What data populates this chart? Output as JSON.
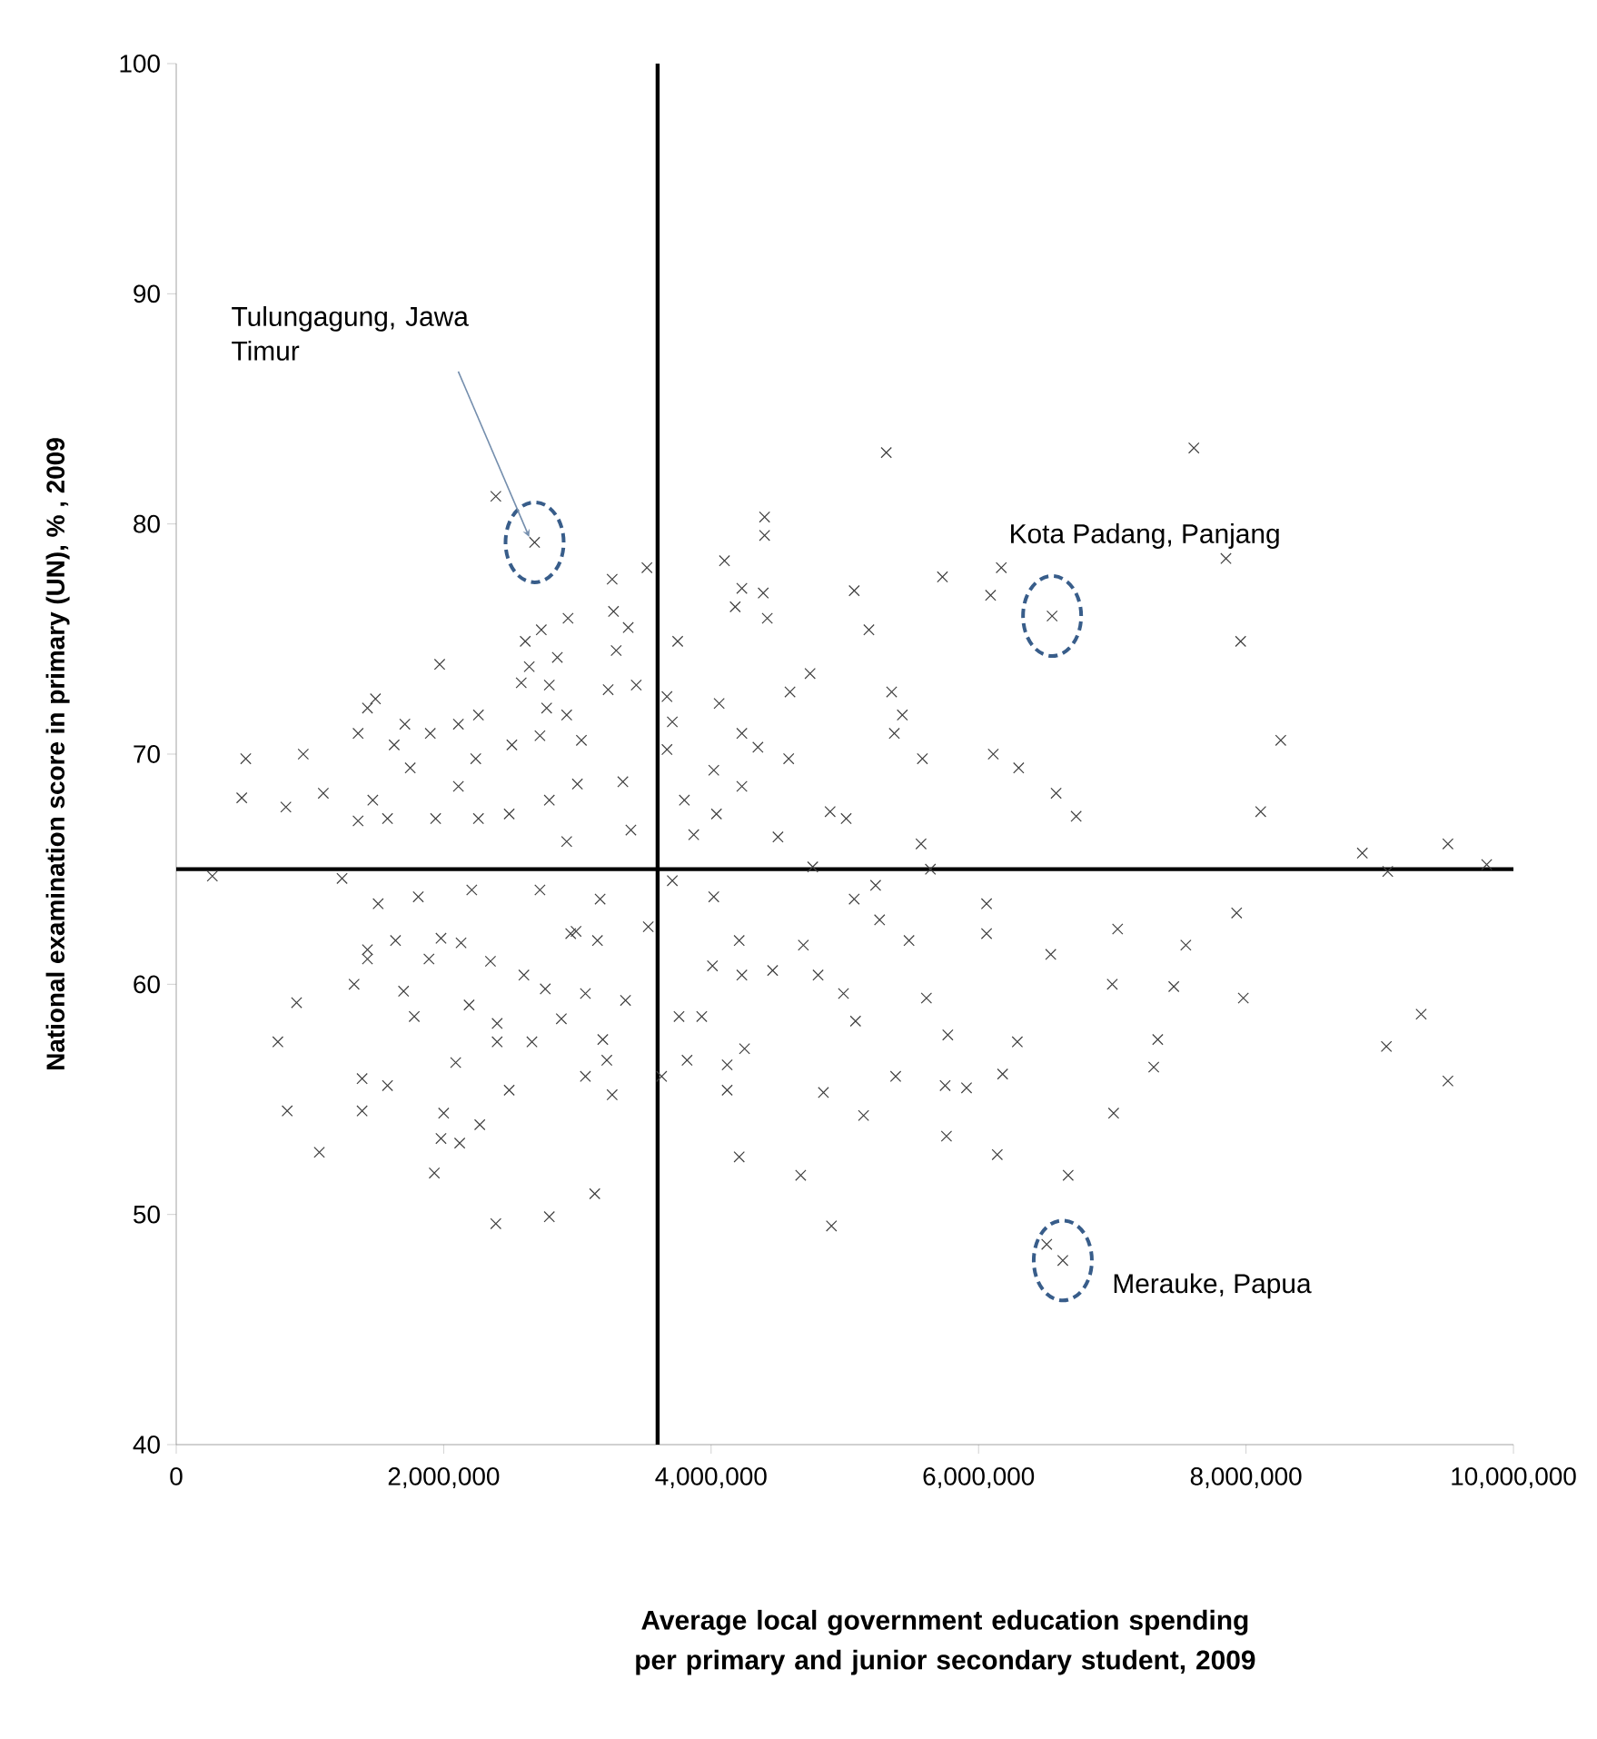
{
  "chart_data": {
    "type": "scatter",
    "xlabel": "Average local government education spending per primary and junior secondary student, 2009",
    "ylabel": "National examination score in primary (UN), % , 2009",
    "marker": "cross",
    "color": "#404040",
    "x": [
      7610000,
      7850000,
      7960000,
      8260000,
      8110000,
      8870000,
      9060000,
      9510000,
      9800000,
      7040000,
      7550000,
      7930000,
      7000000,
      7460000,
      7980000,
      7340000,
      7310000,
      7010000,
      9310000,
      9050000,
      9510000,
      5310000,
      4400000,
      4400000,
      4100000,
      4230000,
      4180000,
      4390000,
      4420000,
      5070000,
      5180000,
      5730000,
      6090000,
      6170000,
      6550000,
      4740000,
      4590000,
      4060000,
      5350000,
      5430000,
      5370000,
      4230000,
      4350000,
      4580000,
      5580000,
      6110000,
      6300000,
      4020000,
      4230000,
      6580000,
      6730000,
      3800000,
      4040000,
      3870000,
      4500000,
      4890000,
      5010000,
      5570000,
      5640000,
      4760000,
      5230000,
      5070000,
      5260000,
      6060000,
      6060000,
      5480000,
      4210000,
      4690000,
      4020000,
      3710000,
      3750000,
      3670000,
      3710000,
      3670000,
      2680000,
      2390000,
      1970000,
      3260000,
      3520000,
      3270000,
      3380000,
      3290000,
      2930000,
      2730000,
      2610000,
      2640000,
      2850000,
      2580000,
      2790000,
      2770000,
      3230000,
      2920000,
      3030000,
      3440000,
      2720000,
      520000,
      950000,
      490000,
      820000,
      1100000,
      270000,
      1430000,
      1490000,
      1360000,
      1710000,
      1630000,
      1900000,
      2110000,
      2260000,
      2510000,
      2240000,
      1750000,
      1470000,
      1360000,
      1580000,
      1940000,
      2110000,
      2260000,
      2490000,
      2790000,
      3000000,
      3340000,
      3400000,
      2920000,
      1240000,
      1510000,
      1810000,
      2210000,
      2720000,
      3170000,
      1430000,
      1980000,
      2990000,
      3530000,
      900000,
      760000,
      830000,
      1070000,
      1390000,
      1390000,
      1580000,
      2000000,
      1980000,
      2120000,
      2270000,
      1930000,
      2390000,
      2790000,
      3130000,
      2490000,
      2090000,
      2660000,
      2400000,
      3260000,
      3060000,
      3630000,
      3820000,
      4120000,
      4120000,
      4210000,
      4670000,
      4900000,
      4840000,
      5140000,
      5380000,
      5750000,
      5910000,
      5760000,
      6140000,
      6670000,
      6630000,
      6510000,
      6180000,
      6290000,
      5770000,
      3930000,
      3760000,
      4250000,
      4010000,
      4230000,
      4460000,
      4800000,
      4990000,
      5080000,
      5610000,
      6540000,
      1330000,
      1430000,
      1640000,
      1700000,
      1780000,
      1890000,
      2130000,
      2190000,
      2350000,
      2400000,
      2600000,
      2760000,
      2880000,
      2950000,
      3150000,
      3190000,
      3220000,
      3360000,
      3060000
    ],
    "values": [
      83.3,
      78.5,
      74.9,
      70.6,
      67.5,
      65.7,
      64.9,
      66.1,
      65.2,
      62.4,
      61.7,
      63.1,
      60.0,
      59.9,
      59.4,
      57.6,
      56.4,
      54.4,
      58.7,
      57.3,
      55.8,
      83.1,
      80.3,
      79.5,
      78.4,
      77.2,
      76.4,
      77.0,
      75.9,
      77.1,
      75.4,
      77.7,
      76.9,
      78.1,
      76.0,
      73.5,
      72.7,
      72.2,
      72.7,
      71.7,
      70.9,
      70.9,
      70.3,
      69.8,
      69.8,
      70.0,
      69.4,
      69.3,
      68.6,
      68.3,
      67.3,
      68.0,
      67.4,
      66.5,
      66.4,
      67.5,
      67.2,
      66.1,
      65.0,
      65.1,
      64.3,
      63.7,
      62.8,
      63.5,
      62.2,
      61.9,
      61.9,
      61.7,
      63.8,
      64.5,
      74.9,
      72.5,
      71.4,
      70.2,
      79.2,
      81.2,
      73.9,
      77.6,
      78.1,
      76.2,
      75.5,
      74.5,
      75.9,
      75.4,
      74.9,
      73.8,
      74.2,
      73.1,
      73.0,
      72.0,
      72.8,
      71.7,
      70.6,
      73.0,
      70.8,
      69.8,
      70.0,
      68.1,
      67.7,
      68.3,
      64.7,
      72.0,
      72.4,
      70.9,
      71.3,
      70.4,
      70.9,
      71.3,
      71.7,
      70.4,
      69.8,
      69.4,
      68.0,
      67.1,
      67.2,
      67.2,
      68.6,
      67.2,
      67.4,
      68.0,
      68.7,
      68.8,
      66.7,
      66.2,
      64.6,
      63.5,
      63.8,
      64.1,
      64.1,
      63.7,
      61.5,
      62.0,
      62.3,
      62.5,
      59.2,
      57.5,
      54.5,
      52.7,
      55.9,
      54.5,
      55.6,
      54.4,
      53.3,
      53.1,
      53.9,
      51.8,
      49.6,
      49.9,
      50.9,
      55.4,
      56.6,
      57.5,
      57.5,
      55.2,
      56.0,
      56.0,
      56.7,
      56.5,
      55.4,
      52.5,
      51.7,
      49.5,
      55.3,
      54.3,
      56.0,
      55.6,
      55.5,
      53.4,
      52.6,
      51.7,
      48.0,
      48.7,
      56.1,
      57.5,
      57.8,
      58.6,
      58.6,
      57.2,
      60.8,
      60.4,
      60.6,
      60.4,
      59.6,
      58.4,
      59.4,
      61.3,
      60.0,
      61.1,
      61.9,
      59.7,
      58.6,
      61.1,
      61.8,
      59.1,
      61.0,
      58.3,
      60.4,
      59.8,
      58.5,
      62.2,
      61.9,
      57.6,
      56.7,
      59.3,
      59.6
    ],
    "xlim": [
      0,
      10000000
    ],
    "ylim": [
      40,
      100
    ],
    "xticks": [
      0,
      {
        "value": 2000000,
        "label": "2,000,000"
      },
      {
        "value": 4000000,
        "label": "4,000,000"
      },
      {
        "value": 6000000,
        "label": "6,000,000"
      },
      {
        "value": 8000000,
        "label": "8,000,000"
      },
      {
        "value": 10000000,
        "label": "10,000,000"
      }
    ],
    "yticks": [
      40,
      50,
      60,
      70,
      80,
      90,
      100
    ],
    "ref_lines": [
      {
        "axis": "x",
        "value": 3600000,
        "color": "#000000"
      },
      {
        "axis": "y",
        "value": 65,
        "color": "#000000"
      }
    ],
    "annotations": [
      {
        "text": "Tulungagung, Jawa Timur",
        "x": 2680000,
        "y": 79.2
      },
      {
        "text": "Kota Padang, Panjang",
        "x": 6550000,
        "y": 76.0
      },
      {
        "text": "Merauke, Papua",
        "x": 6630000,
        "y": 48.0
      }
    ]
  }
}
